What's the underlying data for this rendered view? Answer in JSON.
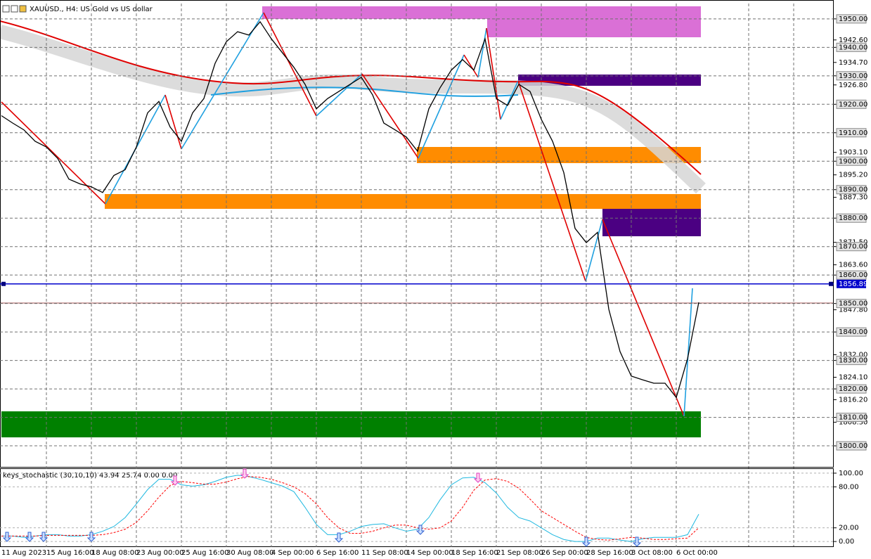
{
  "chart_data": [
    {
      "type": "line",
      "title": "XAUUSD., H4: US Gold vs US dollar",
      "categories": [
        "11 Aug 2023",
        null,
        null,
        null,
        "15 Aug 16:00",
        null,
        null,
        null,
        "18 Aug 08:00",
        null,
        null,
        null,
        "23 Aug 00:00",
        null,
        null,
        null,
        "25 Aug 16:00",
        null,
        null,
        null,
        "30 Aug 08:00",
        null,
        null,
        null,
        "4 Sep 00:00",
        null,
        null,
        null,
        "6 Sep 16:00",
        null,
        null,
        null,
        "11 Sep 08:00",
        null,
        null,
        null,
        "14 Sep 00:00",
        null,
        null,
        null,
        "18 Sep 16:00",
        null,
        null,
        null,
        "21 Sep 08:00",
        null,
        null,
        null,
        "26 Sep 00:00",
        null,
        null,
        null,
        "28 Sep 16:00",
        null,
        null,
        null,
        "3 Oct 08:00",
        null,
        null,
        null,
        "6 Oct 00:00",
        null,
        null
      ],
      "series": [
        {
          "color": "#000000",
          "values": [
            1916,
            1913.4,
            1911,
            1907,
            1905,
            1901,
            1893.7,
            1892,
            1891,
            1889,
            1895,
            1897,
            1905,
            1917,
            1921,
            1912,
            1907,
            1917,
            1922,
            1934.4,
            1942,
            1945.5,
            1944.3,
            1949,
            1943,
            1938,
            1933,
            1927,
            1918.4,
            1922,
            1924.5,
            1927,
            1929.5,
            1923.3,
            1913.4,
            1911,
            1908.5,
            1903.5,
            1918.4,
            1925.8,
            1932,
            1935.7,
            1932,
            1943,
            1922,
            1919.6,
            1927,
            1924.5,
            1914.7,
            1907,
            1896,
            1876.4,
            1871.4,
            1875,
            1848,
            1833.1,
            1824.5,
            1823.2,
            1822,
            1822,
            1817,
            1830.6,
            1850.4
          ]
        }
      ],
      "ylim": [
        1792.6,
        1955.4
      ],
      "yticks": [
        {
          "value": 1942.6,
          "label": "1942.60"
        },
        {
          "value": 1934.7,
          "label": "1934.70"
        },
        {
          "value": 1926.8,
          "label": "1926.80"
        },
        {
          "value": 1903.1,
          "label": "1903.10"
        },
        {
          "value": 1895.2,
          "label": "1895.20"
        },
        {
          "value": 1887.3,
          "label": "1887.30"
        },
        {
          "value": 1871.5,
          "label": "1871.50"
        },
        {
          "value": 1863.6,
          "label": "1863.60"
        },
        {
          "value": 1847.8,
          "label": "1847.80"
        },
        {
          "value": 1832,
          "label": "1832.00"
        },
        {
          "value": 1824.1,
          "label": "1824.10"
        },
        {
          "value": 1816.2,
          "label": "1816.20"
        },
        {
          "value": 1808.3,
          "label": "1808.30"
        }
      ],
      "level_ticks": [
        {
          "value": 1950,
          "label": "1950.00"
        },
        {
          "value": 1940,
          "label": "1940.00"
        },
        {
          "value": 1930,
          "label": "1930.00"
        },
        {
          "value": 1920,
          "label": "1920.00"
        },
        {
          "value": 1910,
          "label": "1910.00"
        },
        {
          "value": 1900,
          "label": "1900.00"
        },
        {
          "value": 1890,
          "label": "1890.00"
        },
        {
          "value": 1880,
          "label": "1880.00"
        },
        {
          "value": 1870,
          "label": "1870.00"
        },
        {
          "value": 1860,
          "label": "1860.00"
        },
        {
          "value": 1850,
          "label": "1850.00"
        },
        {
          "value": 1840,
          "label": "1840.00"
        },
        {
          "value": 1830,
          "label": "1830.00"
        },
        {
          "value": 1820,
          "label": "1820.00"
        },
        {
          "value": 1810,
          "label": "1810.00"
        },
        {
          "value": 1800,
          "label": "1800.00"
        }
      ],
      "current_price": 1856.89,
      "grid": true
    },
    {
      "type": "line",
      "title": "keys_stochastic (30,10,10) 43.94 25.74 0.00 0.00",
      "series": [
        {
          "color": "#1fb8e0",
          "values": [
            8,
            8,
            6,
            8,
            10,
            10,
            8,
            8,
            10,
            15,
            22,
            35,
            55,
            76,
            91,
            91,
            83,
            81,
            83,
            88,
            94,
            97,
            95,
            91,
            86,
            81,
            73,
            50,
            25,
            10,
            10,
            15,
            22,
            25,
            26,
            20,
            15,
            18,
            35,
            61,
            83,
            93,
            94,
            86,
            71,
            50,
            35,
            30,
            20,
            10,
            3,
            0,
            0,
            5,
            5,
            2,
            0,
            4,
            6,
            6,
            6,
            10,
            40
          ]
        },
        {
          "color": "#ff0000",
          "dashed": true,
          "values": [
            8,
            8,
            8,
            8,
            9,
            9,
            9,
            9,
            9,
            10,
            13,
            18,
            28,
            45,
            65,
            82,
            88,
            86,
            84,
            84,
            87,
            92,
            95,
            94,
            91,
            86,
            80,
            70,
            55,
            35,
            20,
            12,
            12,
            15,
            20,
            24,
            24,
            20,
            18,
            20,
            30,
            50,
            75,
            90,
            92,
            88,
            78,
            62,
            45,
            35,
            25,
            15,
            6,
            3,
            2,
            4,
            6,
            5,
            3,
            3,
            4,
            5,
            20
          ]
        }
      ],
      "ylim": [
        -8.1,
        106.1
      ],
      "yticks": [
        {
          "value": 100,
          "label": "100.00"
        },
        {
          "value": 80,
          "label": "80.00"
        },
        {
          "value": 20,
          "label": "20.00"
        },
        {
          "value": 0,
          "label": "0.00"
        }
      ],
      "grid": true
    }
  ]
}
